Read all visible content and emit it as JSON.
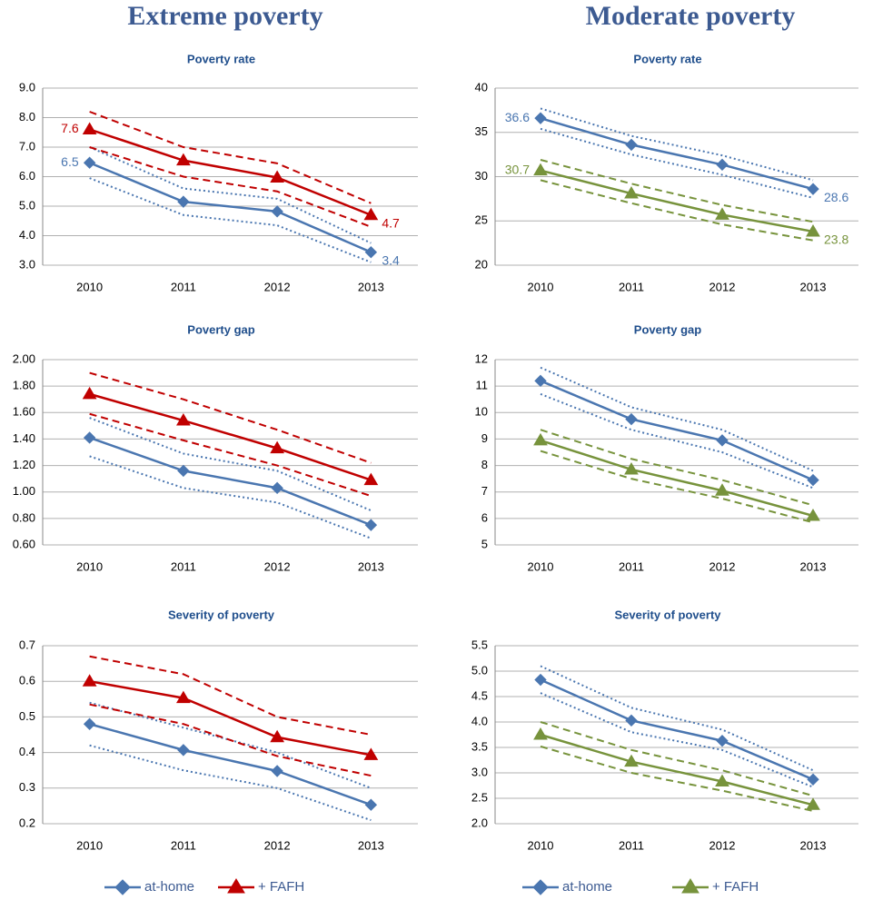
{
  "headers": [
    "Extreme poverty",
    "Moderate poverty"
  ],
  "chart_data": [
    {
      "type": "line",
      "title": "Poverty rate",
      "categories": [
        "2010",
        "2011",
        "2012",
        "2013"
      ],
      "ylim": [
        3,
        9
      ],
      "yticks": [
        {
          "value": 3,
          "label": "3.0"
        },
        {
          "value": 4,
          "label": "4.0"
        },
        {
          "value": 5,
          "label": "5.0"
        },
        {
          "value": 6,
          "label": "6.0"
        },
        {
          "value": 7,
          "label": "7.0"
        },
        {
          "value": 8,
          "label": "8.0"
        },
        {
          "value": 9,
          "label": "9.0"
        }
      ],
      "grid": true,
      "series": [
        {
          "name": "at-home",
          "color": "#4a76b0",
          "marker": "diamond",
          "dash": "dotted",
          "values": [
            6.47,
            5.15,
            4.82,
            3.44
          ],
          "value_labels": [
            "6.5",
            null,
            null,
            "3.4"
          ],
          "upper": [
            7.0,
            5.6,
            5.25,
            3.75
          ],
          "lower": [
            5.95,
            4.7,
            4.35,
            3.1
          ]
        },
        {
          "name": "+ FAFH",
          "color": "#c00000",
          "marker": "triangle",
          "dash": "dashed",
          "values": [
            7.6,
            6.55,
            5.97,
            4.7
          ],
          "value_labels": [
            "7.6",
            null,
            null,
            "4.7"
          ],
          "upper": [
            8.2,
            7.0,
            6.45,
            5.1
          ],
          "lower": [
            7.0,
            6.0,
            5.5,
            4.3
          ]
        }
      ]
    },
    {
      "type": "line",
      "title": "Poverty  rate",
      "categories": [
        "2010",
        "2011",
        "2012",
        "2013"
      ],
      "ylim": [
        20,
        40
      ],
      "yticks": [
        20,
        25,
        30,
        35,
        40
      ],
      "grid": true,
      "series": [
        {
          "name": "at-home",
          "color": "#4a76b0",
          "marker": "diamond",
          "dash": "dotted",
          "values": [
            36.6,
            33.6,
            31.35,
            28.6
          ],
          "value_labels": [
            "36.6",
            null,
            null,
            "28.6"
          ],
          "upper": [
            37.7,
            34.6,
            32.4,
            29.6
          ],
          "lower": [
            35.4,
            32.5,
            30.2,
            27.6
          ]
        },
        {
          "name": "+ FAFH",
          "color": "#77933c",
          "marker": "triangle",
          "dash": "dashed",
          "values": [
            30.7,
            28.1,
            25.7,
            23.8
          ],
          "value_labels": [
            "30.7",
            null,
            null,
            "23.8"
          ],
          "upper": [
            31.9,
            29.2,
            26.8,
            24.9
          ],
          "lower": [
            29.6,
            27.0,
            24.6,
            22.8
          ]
        }
      ]
    },
    {
      "type": "line",
      "title": "Poverty gap",
      "categories": [
        "2010",
        "2011",
        "2012",
        "2013"
      ],
      "ylim": [
        0.6,
        2.0
      ],
      "yticks": [
        {
          "value": 0.6,
          "label": "0.60"
        },
        {
          "value": 0.8,
          "label": "0.80"
        },
        {
          "value": 1.0,
          "label": "1.00"
        },
        {
          "value": 1.2,
          "label": "1.20"
        },
        {
          "value": 1.4,
          "label": "1.40"
        },
        {
          "value": 1.6,
          "label": "1.60"
        },
        {
          "value": 1.8,
          "label": "1.80"
        },
        {
          "value": 2.0,
          "label": "2.00"
        }
      ],
      "grid": true,
      "series": [
        {
          "name": "at-home",
          "color": "#4a76b0",
          "marker": "diamond",
          "dash": "dotted",
          "values": [
            1.41,
            1.16,
            1.03,
            0.75
          ],
          "upper": [
            1.56,
            1.29,
            1.16,
            0.86
          ],
          "lower": [
            1.27,
            1.03,
            0.92,
            0.65
          ]
        },
        {
          "name": "+ FAFH",
          "color": "#c00000",
          "marker": "triangle",
          "dash": "dashed",
          "values": [
            1.74,
            1.54,
            1.33,
            1.09
          ],
          "upper": [
            1.9,
            1.7,
            1.47,
            1.22
          ],
          "lower": [
            1.59,
            1.39,
            1.2,
            0.97
          ]
        }
      ]
    },
    {
      "type": "line",
      "title": "Poverty gap",
      "categories": [
        "2010",
        "2011",
        "2012",
        "2013"
      ],
      "ylim": [
        5,
        12
      ],
      "yticks": [
        5,
        6,
        7,
        8,
        9,
        10,
        11,
        12
      ],
      "grid": true,
      "series": [
        {
          "name": "at-home",
          "color": "#4a76b0",
          "marker": "diamond",
          "dash": "dotted",
          "values": [
            11.2,
            9.75,
            8.95,
            7.45
          ],
          "upper": [
            11.7,
            10.2,
            9.35,
            7.8
          ],
          "lower": [
            10.7,
            9.35,
            8.5,
            7.15
          ]
        },
        {
          "name": "+ FAFH",
          "color": "#77933c",
          "marker": "triangle",
          "dash": "dashed",
          "values": [
            8.95,
            7.85,
            7.05,
            6.1
          ],
          "upper": [
            9.35,
            8.25,
            7.45,
            6.5
          ],
          "lower": [
            8.55,
            7.5,
            6.75,
            5.85
          ]
        }
      ]
    },
    {
      "type": "line",
      "title": "Severity of poverty",
      "categories": [
        "2010",
        "2011",
        "2012",
        "2013"
      ],
      "ylim": [
        0.2,
        0.7
      ],
      "yticks": [
        0.2,
        0.3,
        0.4,
        0.5,
        0.6,
        0.7
      ],
      "grid": true,
      "series": [
        {
          "name": "at-home",
          "color": "#4a76b0",
          "marker": "diamond",
          "dash": "dotted",
          "values": [
            0.48,
            0.407,
            0.348,
            0.253
          ],
          "upper": [
            0.54,
            0.47,
            0.4,
            0.3
          ],
          "lower": [
            0.42,
            0.35,
            0.3,
            0.21
          ]
        },
        {
          "name": "+ FAFH",
          "color": "#c00000",
          "marker": "triangle",
          "dash": "dashed",
          "values": [
            0.6,
            0.553,
            0.443,
            0.393
          ],
          "upper": [
            0.67,
            0.62,
            0.5,
            0.45
          ],
          "lower": [
            0.535,
            0.48,
            0.39,
            0.335
          ]
        }
      ]
    },
    {
      "type": "line",
      "title": "Severity of poverty",
      "categories": [
        "2010",
        "2011",
        "2012",
        "2013"
      ],
      "ylim": [
        2.0,
        5.5
      ],
      "yticks": [
        {
          "value": 2.0,
          "label": "2.0"
        },
        2.5,
        {
          "value": 3.0,
          "label": "3.0"
        },
        3.5,
        {
          "value": 4.0,
          "label": "4.0"
        },
        4.5,
        {
          "value": 5.0,
          "label": "5.0"
        },
        5.5
      ],
      "grid": true,
      "series": [
        {
          "name": "at-home",
          "color": "#4a76b0",
          "marker": "diamond",
          "dash": "dotted",
          "values": [
            4.83,
            4.03,
            3.63,
            2.87
          ],
          "upper": [
            5.1,
            4.28,
            3.85,
            3.05
          ],
          "lower": [
            4.57,
            3.8,
            3.45,
            2.72
          ]
        },
        {
          "name": "+ FAFH",
          "color": "#77933c",
          "marker": "triangle",
          "dash": "dashed",
          "values": [
            3.75,
            3.22,
            2.83,
            2.37
          ],
          "upper": [
            4.0,
            3.45,
            3.05,
            2.55
          ],
          "lower": [
            3.52,
            3.0,
            2.65,
            2.25
          ]
        }
      ]
    }
  ]
}
